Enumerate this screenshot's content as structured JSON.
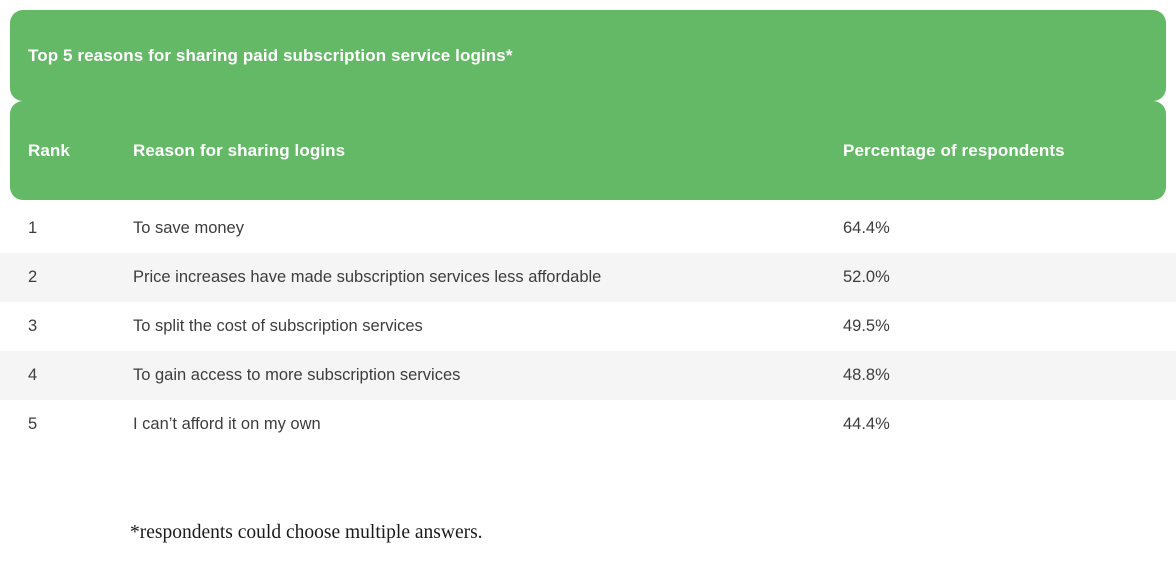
{
  "colors": {
    "accent_green": "#64b966",
    "row_alt_background": "#f5f5f5",
    "header_text": "#ffffff",
    "body_text": "#3d3d3d"
  },
  "table": {
    "title": "Top 5 reasons for sharing paid subscription service logins*",
    "columns": {
      "rank": "Rank",
      "reason": "Reason for sharing logins",
      "percentage": "Percentage of respondents"
    },
    "rows": [
      {
        "rank": "1",
        "reason": "To save money",
        "percentage": "64.4%"
      },
      {
        "rank": "2",
        "reason": "Price increases have made subscription services less affordable",
        "percentage": "52.0%"
      },
      {
        "rank": "3",
        "reason": "To split the cost of subscription services",
        "percentage": "49.5%"
      },
      {
        "rank": "4",
        "reason": "To gain access to more subscription services",
        "percentage": "48.8%"
      },
      {
        "rank": "5",
        "reason": "I can’t afford it on my own",
        "percentage": "44.4%"
      }
    ],
    "footnote": "*respondents could choose multiple answers."
  },
  "chart_data": {
    "type": "table",
    "title": "Top 5 reasons for sharing paid subscription service logins*",
    "columns": [
      "Rank",
      "Reason for sharing logins",
      "Percentage of respondents"
    ],
    "rows": [
      [
        1,
        "To save money",
        64.4
      ],
      [
        2,
        "Price increases have made subscription services less affordable",
        52.0
      ],
      [
        3,
        "To split the cost of subscription services",
        49.5
      ],
      [
        4,
        "To gain access to more subscription services",
        48.8
      ],
      [
        5,
        "I can’t afford it on my own",
        44.4
      ]
    ],
    "value_unit": "%",
    "footnote": "*respondents could choose multiple answers."
  }
}
